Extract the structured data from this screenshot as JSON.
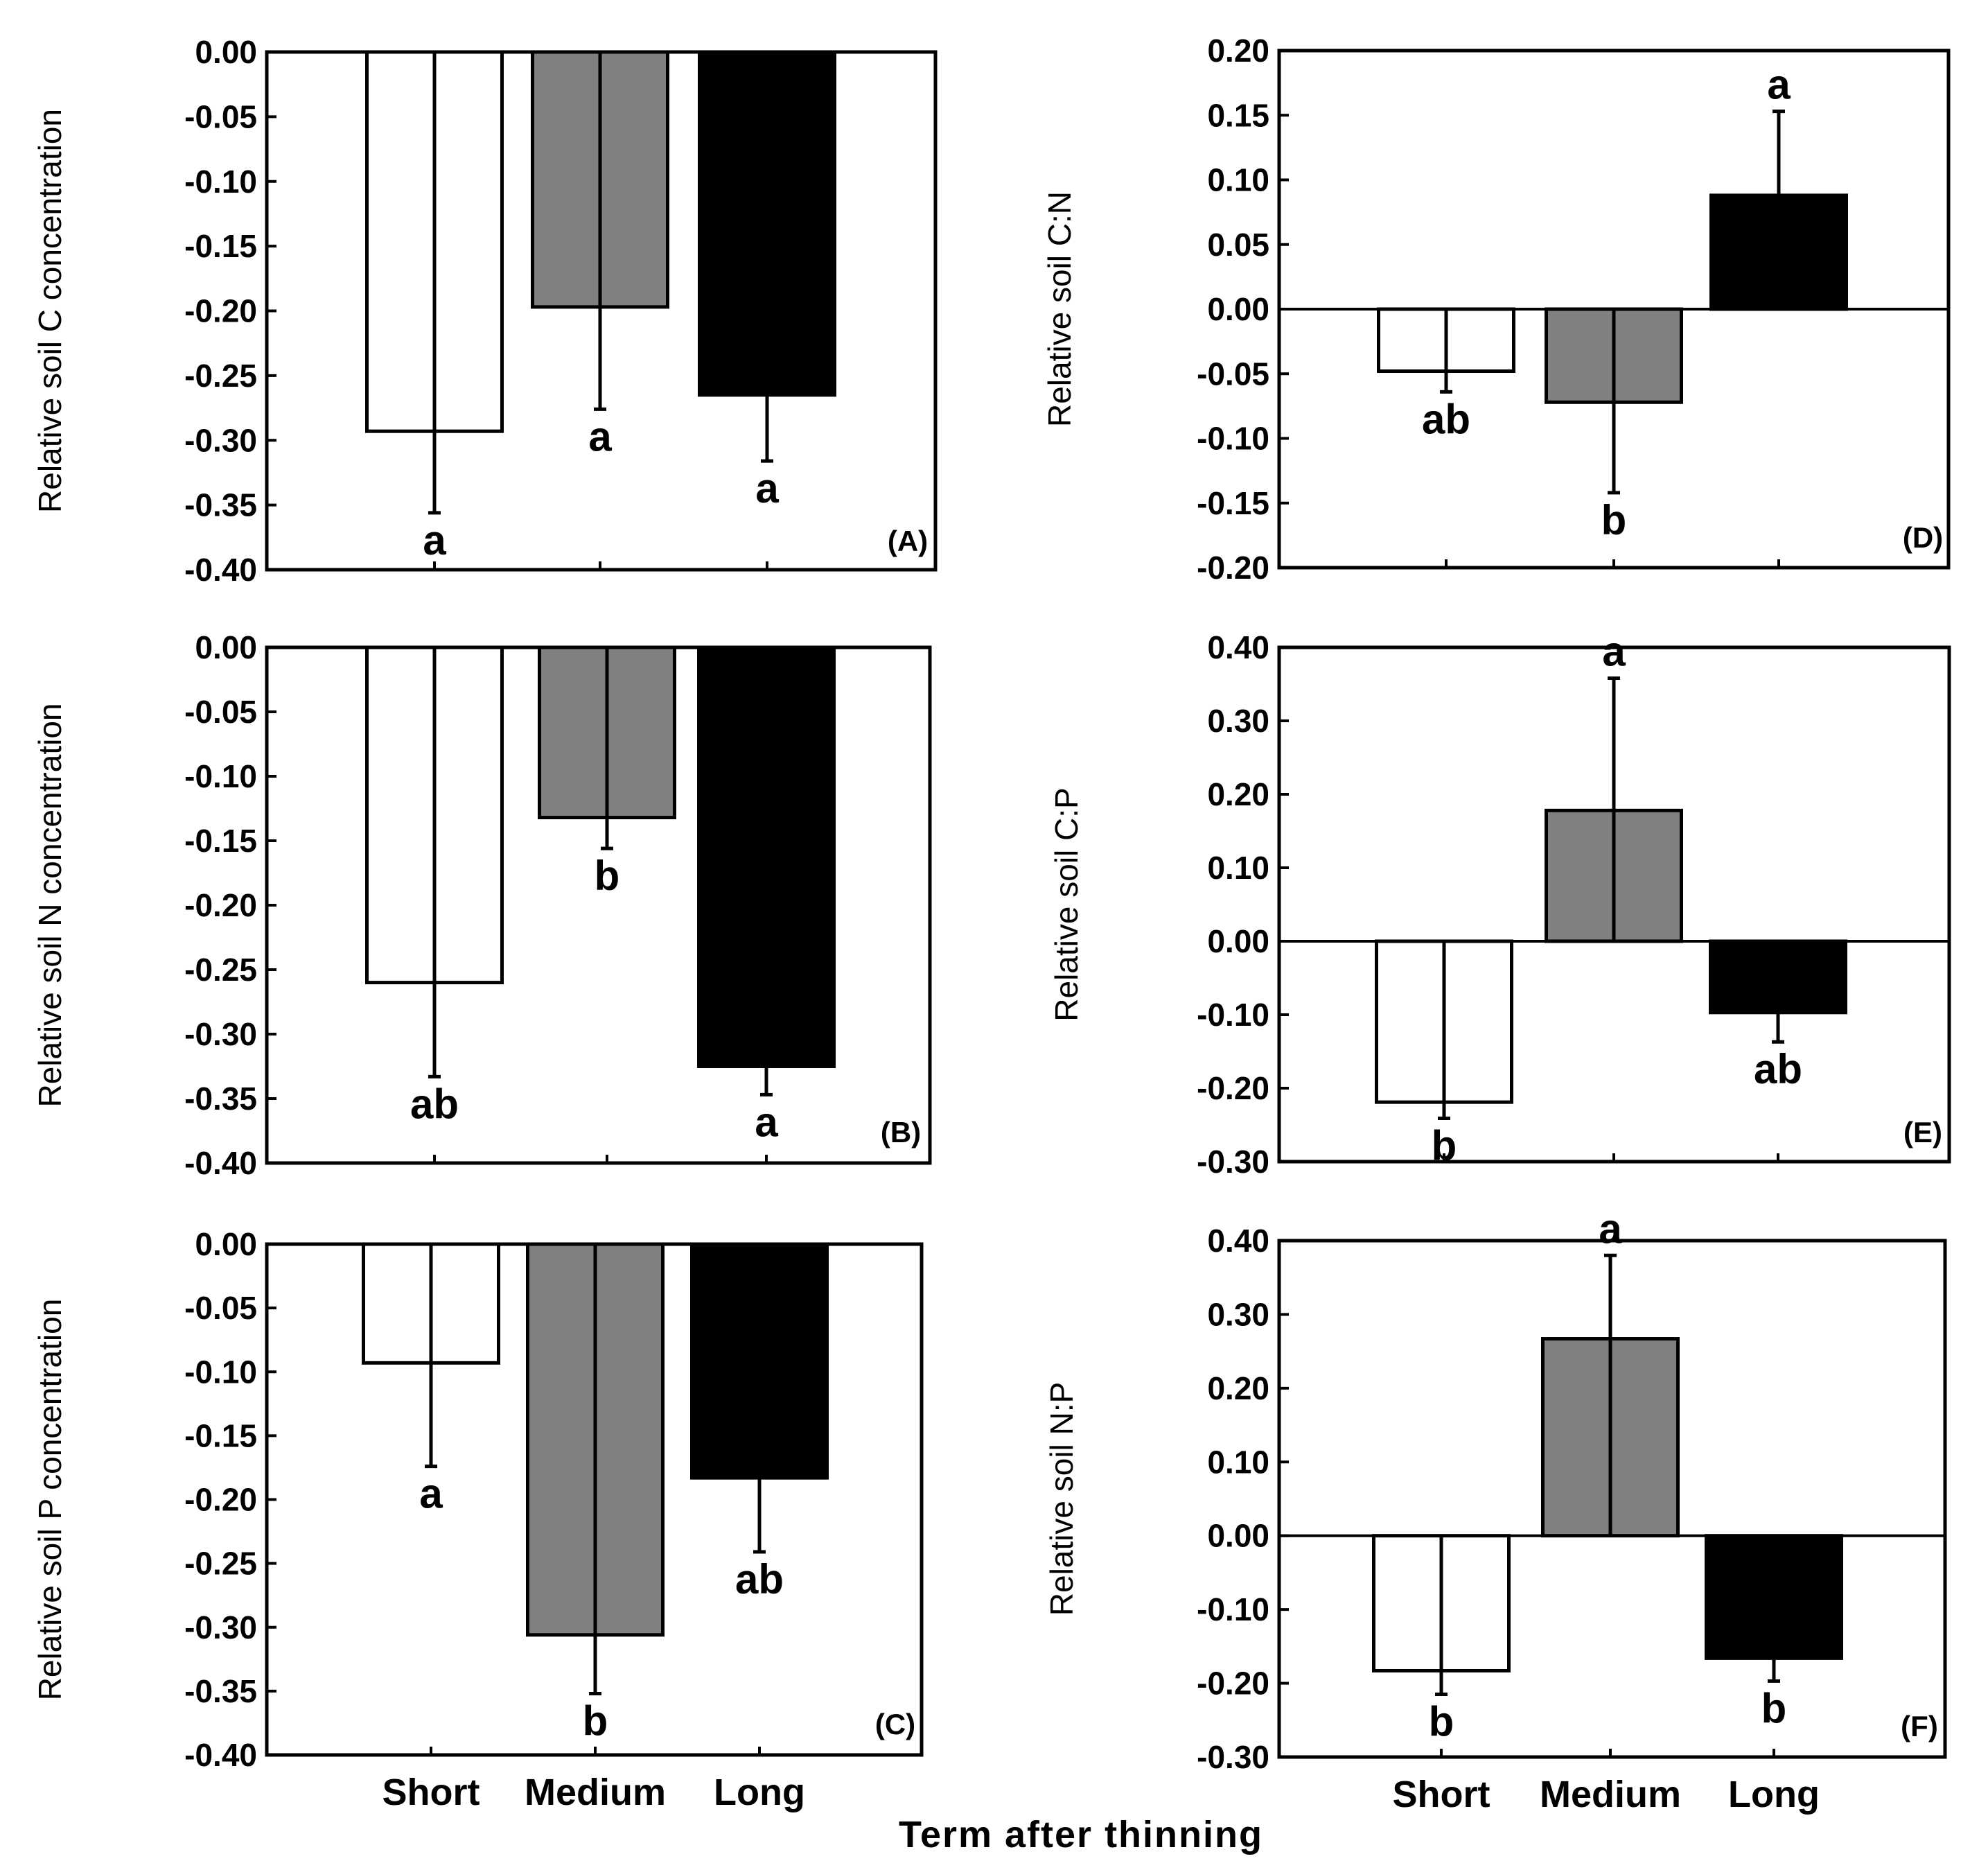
{
  "chart_data": [
    {
      "type": "bar",
      "panel_label": "(A)",
      "ylabel": "Relative soil C concentration",
      "xlabel": "",
      "categories": [
        "Short",
        "Medium",
        "Long"
      ],
      "values": [
        -0.293,
        -0.197,
        -0.265
      ],
      "errors": [
        0.063,
        0.079,
        0.051
      ],
      "significance": [
        "a",
        "a",
        "a"
      ],
      "colors": [
        "#ffffff",
        "#808080",
        "#000000"
      ],
      "ylim": [
        -0.4,
        0.0
      ],
      "yticks": [
        0.0,
        -0.05,
        -0.1,
        -0.15,
        -0.2,
        -0.25,
        -0.3,
        -0.35,
        -0.4
      ],
      "ytick_labels": [
        "0.00",
        "-0.05",
        "-0.10",
        "-0.15",
        "-0.20",
        "-0.25",
        "-0.30",
        "-0.35",
        "-0.40"
      ],
      "show_category_labels": false
    },
    {
      "type": "bar",
      "panel_label": "(B)",
      "ylabel": "Relative soil N concentration",
      "xlabel": "",
      "categories": [
        "Short",
        "Medium",
        "Long"
      ],
      "values": [
        -0.26,
        -0.132,
        -0.325
      ],
      "errors": [
        0.073,
        0.024,
        0.022
      ],
      "significance": [
        "ab",
        "b",
        "a"
      ],
      "colors": [
        "#ffffff",
        "#808080",
        "#000000"
      ],
      "ylim": [
        -0.4,
        0.0
      ],
      "yticks": [
        0.0,
        -0.05,
        -0.1,
        -0.15,
        -0.2,
        -0.25,
        -0.3,
        -0.35,
        -0.4
      ],
      "ytick_labels": [
        "0.00",
        "-0.05",
        "-0.10",
        "-0.15",
        "-0.20",
        "-0.25",
        "-0.30",
        "-0.35",
        "-0.40"
      ],
      "show_category_labels": false
    },
    {
      "type": "bar",
      "panel_label": "(C)",
      "ylabel": "Relative soil P concentration",
      "xlabel": "",
      "categories": [
        "Short",
        "Medium",
        "Long"
      ],
      "values": [
        -0.093,
        -0.306,
        -0.183
      ],
      "errors": [
        0.081,
        0.046,
        0.058
      ],
      "significance": [
        "a",
        "b",
        "ab"
      ],
      "colors": [
        "#ffffff",
        "#808080",
        "#000000"
      ],
      "ylim": [
        -0.4,
        0.0
      ],
      "yticks": [
        0.0,
        -0.05,
        -0.1,
        -0.15,
        -0.2,
        -0.25,
        -0.3,
        -0.35,
        -0.4
      ],
      "ytick_labels": [
        "0.00",
        "-0.05",
        "-0.10",
        "-0.15",
        "-0.20",
        "-0.25",
        "-0.30",
        "-0.35",
        "-0.40"
      ],
      "show_category_labels": true
    },
    {
      "type": "bar",
      "panel_label": "(D)",
      "ylabel": "Relative soil C:N",
      "xlabel": "",
      "categories": [
        "Short",
        "Medium",
        "Long"
      ],
      "values": [
        -0.048,
        -0.072,
        0.088
      ],
      "errors": [
        0.016,
        0.07,
        0.065
      ],
      "significance": [
        "ab",
        "b",
        "a"
      ],
      "colors": [
        "#ffffff",
        "#808080",
        "#000000"
      ],
      "ylim": [
        -0.2,
        0.2
      ],
      "yticks": [
        0.2,
        0.15,
        0.1,
        0.05,
        0.0,
        -0.05,
        -0.1,
        -0.15,
        -0.2
      ],
      "ytick_labels": [
        "0.20",
        "0.15",
        "0.10",
        "0.05",
        "0.00",
        "-0.05",
        "-0.10",
        "-0.15",
        "-0.20"
      ],
      "show_category_labels": false
    },
    {
      "type": "bar",
      "panel_label": "(E)",
      "ylabel": "Relative soil C:P",
      "xlabel": "",
      "categories": [
        "Short",
        "Medium",
        "Long"
      ],
      "values": [
        -0.219,
        0.178,
        -0.097
      ],
      "errors": [
        0.022,
        0.18,
        0.04
      ],
      "significance": [
        "b",
        "a",
        "ab"
      ],
      "colors": [
        "#ffffff",
        "#808080",
        "#000000"
      ],
      "ylim": [
        -0.3,
        0.4
      ],
      "yticks": [
        0.4,
        0.3,
        0.2,
        0.1,
        0.0,
        -0.1,
        -0.2,
        -0.3
      ],
      "ytick_labels": [
        "0.40",
        "0.30",
        "0.20",
        "0.10",
        "0.00",
        "-0.10",
        "-0.20",
        "-0.30"
      ],
      "show_category_labels": false
    },
    {
      "type": "bar",
      "panel_label": "(F)",
      "ylabel": "Relative soil N:P",
      "xlabel": "",
      "categories": [
        "Short",
        "Medium",
        "Long"
      ],
      "values": [
        -0.183,
        0.267,
        -0.166
      ],
      "errors": [
        0.032,
        0.113,
        0.031
      ],
      "significance": [
        "b",
        "a",
        "b"
      ],
      "colors": [
        "#ffffff",
        "#808080",
        "#000000"
      ],
      "ylim": [
        -0.3,
        0.4
      ],
      "yticks": [
        0.4,
        0.3,
        0.2,
        0.1,
        0.0,
        -0.1,
        -0.2,
        -0.3
      ],
      "ytick_labels": [
        "0.40",
        "0.30",
        "0.20",
        "0.10",
        "0.00",
        "-0.10",
        "-0.20",
        "-0.30"
      ],
      "show_category_labels": true
    }
  ],
  "figure": {
    "x_axis_title": "Term after thinning"
  }
}
